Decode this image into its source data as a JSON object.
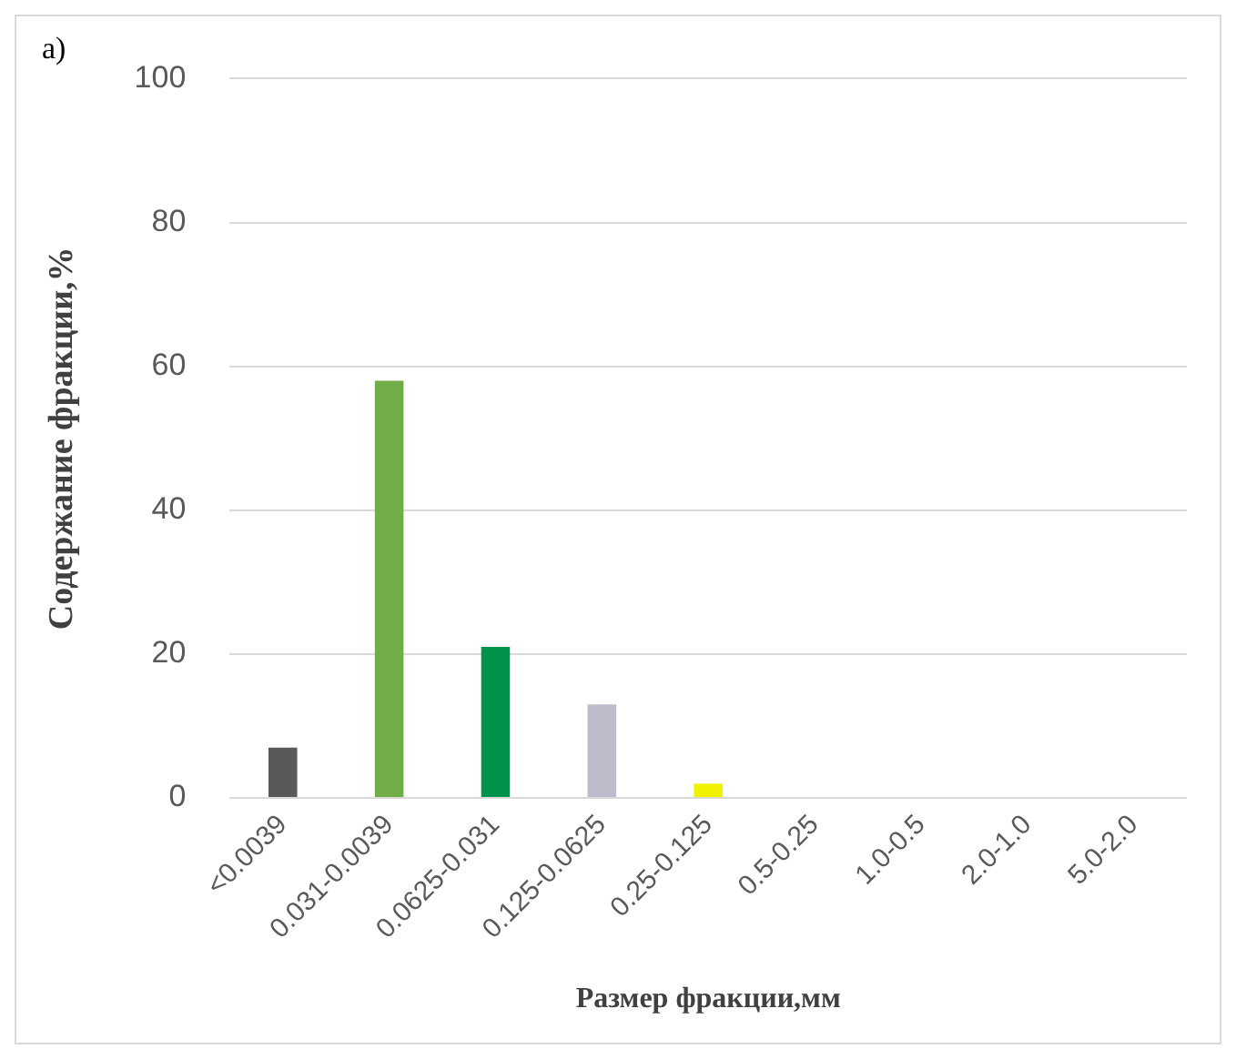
{
  "chart_data": {
    "type": "bar",
    "xlabel": "Размер фракции,мм",
    "ylabel": "Содержание фракции,%",
    "annotations": [
      "а)"
    ],
    "categories": [
      "<0.0039",
      "0.031-0.0039",
      "0.0625-0.031",
      "0.125-0.0625",
      "0.25-0.125",
      "0.5-0.25",
      "1.0-0.5",
      "2.0-1.0",
      "5.0-2.0"
    ],
    "values": [
      7,
      58,
      21,
      13,
      2,
      0,
      0,
      0,
      0
    ],
    "colors": [
      "#595959",
      "#70ad47",
      "#00914a",
      "#bdbccb",
      "#f2f200",
      "#a5a5a5",
      "#a5a5a5",
      "#a5a5a5",
      "#a5a5a5"
    ],
    "ylim": [
      0,
      100
    ],
    "yticks": [
      0,
      20,
      40,
      60,
      80,
      100
    ],
    "grid": "y"
  }
}
